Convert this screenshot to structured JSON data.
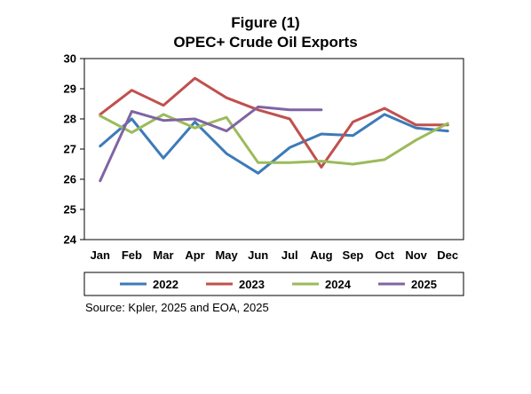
{
  "chart_data": {
    "type": "line",
    "title": "Figure (1)",
    "subtitle": "OPEC+ Crude Oil Exports",
    "xlabel": "",
    "ylabel": "",
    "categories": [
      "Jan",
      "Feb",
      "Mar",
      "Apr",
      "May",
      "Jun",
      "Jul",
      "Aug",
      "Sep",
      "Oct",
      "Nov",
      "Dec"
    ],
    "ylim": [
      24,
      30
    ],
    "yticks": [
      24,
      25,
      26,
      27,
      28,
      29,
      30
    ],
    "grid": false,
    "legend_position": "bottom",
    "series": [
      {
        "name": "2022",
        "color": "#3d7ab8",
        "values": [
          27.1,
          28.0,
          26.7,
          27.9,
          26.85,
          26.2,
          27.05,
          27.5,
          27.45,
          28.15,
          27.7,
          27.6
        ]
      },
      {
        "name": "2023",
        "color": "#c0504d",
        "values": [
          28.15,
          28.95,
          28.45,
          29.35,
          28.7,
          28.3,
          28.0,
          26.4,
          27.9,
          28.35,
          27.8,
          27.8
        ]
      },
      {
        "name": "2024",
        "color": "#9bbb59",
        "values": [
          28.1,
          27.55,
          28.15,
          27.7,
          28.05,
          26.55,
          26.55,
          26.6,
          26.5,
          26.65,
          27.3,
          27.85
        ]
      },
      {
        "name": "2025",
        "color": "#8064a2",
        "values": [
          25.95,
          28.25,
          27.95,
          28.0,
          27.6,
          28.4,
          28.3,
          28.3,
          null,
          null,
          null,
          null
        ]
      }
    ]
  },
  "source_note": "Source: Kpler, 2025 and EOA, 2025"
}
